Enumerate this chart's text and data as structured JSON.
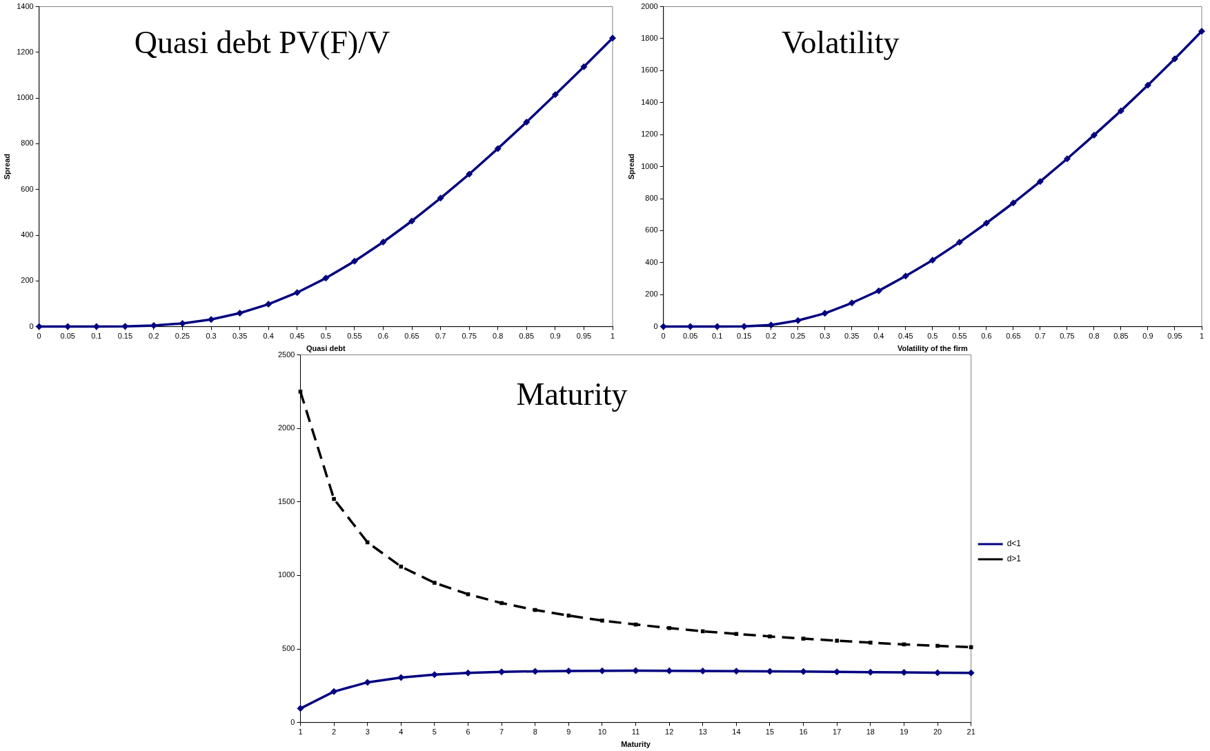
{
  "chart_data": [
    {
      "type": "line",
      "title": "Quasi debt PV(F)/V",
      "xlabel": "Quasi debt",
      "ylabel": "Spread",
      "x": [
        0,
        0.05,
        0.1,
        0.15,
        0.2,
        0.25,
        0.3,
        0.35,
        0.4,
        0.45,
        0.5,
        0.55,
        0.6,
        0.65,
        0.7,
        0.75,
        0.8,
        0.85,
        0.9,
        0.95,
        1
      ],
      "series": [
        {
          "color": "#000080",
          "marker": "diamond",
          "line_style": "solid",
          "values": [
            0,
            0,
            0,
            1,
            5,
            14,
            31,
            59,
            98,
            149,
            212,
            286,
            370,
            462,
            562,
            667,
            779,
            895,
            1015,
            1137,
            1262
          ]
        }
      ],
      "xlim": [
        0,
        1
      ],
      "xticks": [
        0,
        0.05,
        0.1,
        0.15,
        0.2,
        0.25,
        0.3,
        0.35,
        0.4,
        0.45,
        0.5,
        0.55,
        0.6,
        0.65,
        0.7,
        0.75,
        0.8,
        0.85,
        0.9,
        0.95,
        1
      ],
      "ylim": [
        0,
        1400
      ],
      "yticks": [
        0,
        200,
        400,
        600,
        800,
        1000,
        1200,
        1400
      ],
      "grid": false,
      "legend": false
    },
    {
      "type": "line",
      "title": "Volatility",
      "xlabel": "Volatility of the firm",
      "ylabel": "Spread",
      "x": [
        0,
        0.05,
        0.1,
        0.15,
        0.2,
        0.25,
        0.3,
        0.35,
        0.4,
        0.45,
        0.5,
        0.55,
        0.6,
        0.65,
        0.7,
        0.75,
        0.8,
        0.85,
        0.9,
        0.95,
        1
      ],
      "series": [
        {
          "color": "#000080",
          "marker": "diamond",
          "line_style": "solid",
          "values": [
            0,
            0,
            0,
            1,
            10,
            38,
            83,
            148,
            224,
            316,
            415,
            527,
            647,
            773,
            907,
            1049,
            1197,
            1349,
            1509,
            1674,
            1846
          ]
        }
      ],
      "xlim": [
        0,
        1
      ],
      "xticks": [
        0,
        0.05,
        0.1,
        0.15,
        0.2,
        0.25,
        0.3,
        0.35,
        0.4,
        0.45,
        0.5,
        0.55,
        0.6,
        0.65,
        0.7,
        0.75,
        0.8,
        0.85,
        0.9,
        0.95,
        1
      ],
      "ylim": [
        0,
        2000
      ],
      "yticks": [
        0,
        200,
        400,
        600,
        800,
        1000,
        1200,
        1400,
        1600,
        1800,
        2000
      ],
      "grid": false,
      "legend": false
    },
    {
      "type": "line",
      "title": "Maturity",
      "xlabel": "Maturity",
      "x": [
        1,
        2,
        3,
        4,
        5,
        6,
        7,
        8,
        9,
        10,
        11,
        12,
        13,
        14,
        15,
        16,
        17,
        18,
        19,
        20,
        21
      ],
      "series": [
        {
          "name": "d<1",
          "color": "#000080",
          "marker": "diamond",
          "line_style": "solid",
          "values": [
            95,
            210,
            273,
            305,
            325,
            337,
            344,
            348,
            350,
            351,
            352,
            351,
            350,
            349,
            348,
            346,
            344,
            342,
            340,
            338,
            337
          ]
        },
        {
          "name": "d>1",
          "color": "#000000",
          "marker": "square",
          "line_style": "dashed",
          "values": [
            2250,
            1520,
            1225,
            1060,
            950,
            872,
            812,
            765,
            727,
            693,
            666,
            642,
            620,
            602,
            585,
            570,
            556,
            543,
            531,
            521,
            512
          ]
        }
      ],
      "xlim": [
        1,
        21
      ],
      "xticks": [
        1,
        2,
        3,
        4,
        5,
        6,
        7,
        8,
        9,
        10,
        11,
        12,
        13,
        14,
        15,
        16,
        17,
        18,
        19,
        20,
        21
      ],
      "ylim": [
        0,
        2500
      ],
      "yticks": [
        0,
        500,
        1000,
        1500,
        2000,
        2500
      ],
      "grid": false,
      "legend": "right"
    }
  ]
}
